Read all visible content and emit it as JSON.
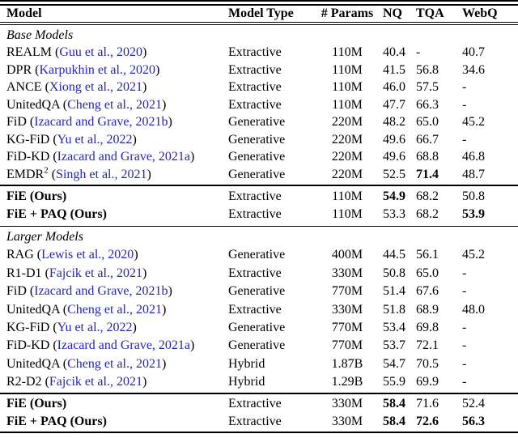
{
  "colors": {
    "link": "#2525b0",
    "text": "#000000",
    "rule": "#000000"
  },
  "punct": {
    "open": " (",
    "close": ")"
  },
  "header": {
    "columns": [
      "Model",
      "Model Type",
      "# Params",
      "NQ",
      "TQA",
      "WebQ"
    ]
  },
  "sections": [
    {
      "label": "Base Models",
      "rows": [
        {
          "name": "REALM",
          "cite": "Guu et al., 2020",
          "type": "Extractive",
          "params": "110M",
          "nq": "40.4",
          "tqa": "-",
          "webq": "40.7"
        },
        {
          "name": "DPR",
          "cite": "Karpukhin et al., 2020",
          "type": "Extractive",
          "params": "110M",
          "nq": "41.5",
          "tqa": "56.8",
          "webq": "34.6"
        },
        {
          "name": "ANCE",
          "cite": "Xiong et al., 2021",
          "type": "Extractive",
          "params": "110M",
          "nq": "46.0",
          "tqa": "57.5",
          "webq": "-"
        },
        {
          "name": "UnitedQA",
          "cite": "Cheng et al., 2021",
          "type": "Extractive",
          "params": "110M",
          "nq": "47.7",
          "tqa": "66.3",
          "webq": "-"
        },
        {
          "name": "FiD",
          "cite": "Izacard and Grave, 2021b",
          "type": "Generative",
          "params": "220M",
          "nq": "48.2",
          "tqa": "65.0",
          "webq": "45.2"
        },
        {
          "name": "KG-FiD",
          "cite": "Yu et al., 2022",
          "type": "Generative",
          "params": "220M",
          "nq": "49.6",
          "tqa": "66.7",
          "webq": "-"
        },
        {
          "name": "FiD-KD",
          "cite": "Izacard and Grave, 2021a",
          "type": "Generative",
          "params": "220M",
          "nq": "49.6",
          "tqa": "68.8",
          "webq": "46.8"
        },
        {
          "name": "EMDR",
          "sup": "2",
          "cite": "Singh et al., 2021",
          "type": "Generative",
          "params": "220M",
          "nq": "52.5",
          "tqa": "71.4",
          "webq": "48.7"
        }
      ],
      "ours": [
        {
          "name": "FiE (Ours)",
          "type": "Extractive",
          "params": "110M",
          "nq": "54.9",
          "tqa": "68.2",
          "webq": "50.8"
        },
        {
          "name": "FiE + PAQ (Ours)",
          "type": "Extractive",
          "params": "110M",
          "nq": "53.3",
          "tqa": "68.2",
          "webq": "53.9"
        }
      ]
    },
    {
      "label": "Larger Models",
      "rows": [
        {
          "name": "RAG",
          "cite": "Lewis et al., 2020",
          "type": "Generative",
          "params": "400M",
          "nq": "44.5",
          "tqa": "56.1",
          "webq": "45.2"
        },
        {
          "name": "R1-D1",
          "cite": "Fajcik et al., 2021",
          "type": "Extractive",
          "params": "330M",
          "nq": "50.8",
          "tqa": "65.0",
          "webq": "-"
        },
        {
          "name": "FiD",
          "cite": "Izacard and Grave, 2021b",
          "type": "Generative",
          "params": "770M",
          "nq": "51.4",
          "tqa": "67.6",
          "webq": "-"
        },
        {
          "name": "UnitedQA",
          "cite": "Cheng et al., 2021",
          "type": "Extractive",
          "params": "330M",
          "nq": "51.8",
          "tqa": "68.9",
          "webq": "48.0"
        },
        {
          "name": "KG-FiD",
          "cite": "Yu et al., 2022",
          "type": "Generative",
          "params": "770M",
          "nq": "53.4",
          "tqa": "69.8",
          "webq": "-"
        },
        {
          "name": "FiD-KD",
          "cite": "Izacard and Grave, 2021a",
          "type": "Generative",
          "params": "770M",
          "nq": "53.7",
          "tqa": "72.1",
          "webq": "-"
        },
        {
          "name": "UnitedQA",
          "cite": "Cheng et al., 2021",
          "type": "Hybrid",
          "params": "1.87B",
          "nq": "54.7",
          "tqa": "70.5",
          "webq": "-"
        },
        {
          "name": "R2-D2",
          "cite": "Fajcik et al., 2021",
          "type": "Hybrid",
          "params": "1.29B",
          "nq": "55.9",
          "tqa": "69.9",
          "webq": "-"
        }
      ],
      "ours": [
        {
          "name": "FiE (Ours)",
          "type": "Extractive",
          "params": "330M",
          "nq": "58.4",
          "tqa": "71.6",
          "webq": "52.4"
        },
        {
          "name": "FiE + PAQ (Ours)",
          "type": "Extractive",
          "params": "330M",
          "nq": "58.4",
          "tqa": "72.6",
          "webq": "56.3"
        }
      ]
    }
  ]
}
